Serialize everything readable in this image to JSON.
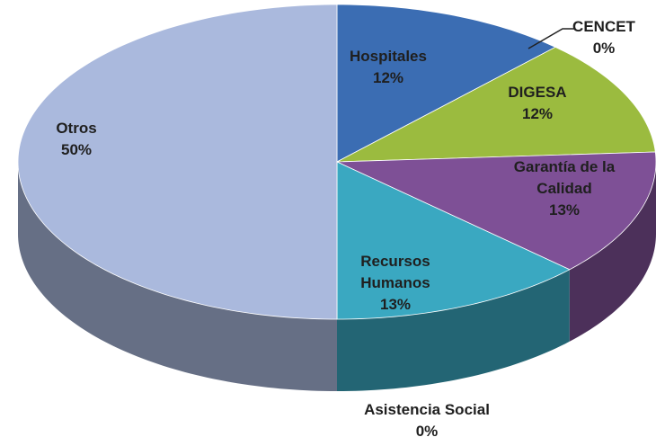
{
  "chart_data": {
    "type": "pie3d",
    "categories": [
      "Hospitales",
      "CENCET",
      "DIGESA",
      "Garantía de la Calidad",
      "Recursos Humanos",
      "Asistencia Social",
      "Otros"
    ],
    "values": [
      12,
      0,
      12,
      13,
      13,
      0,
      50
    ],
    "value_labels": [
      "12%",
      "0%",
      "12%",
      "13%",
      "13%",
      "0%",
      "50%"
    ],
    "colors": [
      "#3b6db3",
      "#c0504d",
      "#9bbb3f",
      "#7e5096",
      "#3aa8c1",
      "#f79646",
      "#aab9dd"
    ]
  }
}
